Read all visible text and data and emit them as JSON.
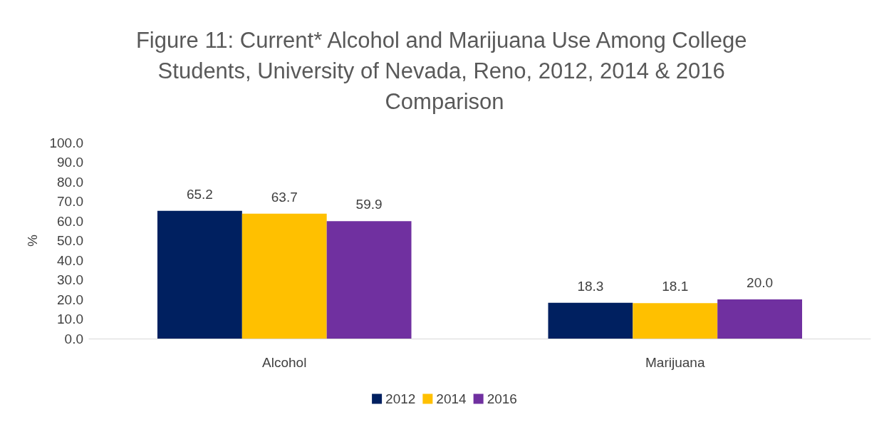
{
  "chart_data": {
    "type": "bar",
    "title": "Figure 11: Current* Alcohol and Marijuana Use Among College Students, University of Nevada, Reno, 2012, 2014 & 2016 Comparison",
    "ylabel": "%",
    "categories": [
      "Alcohol",
      "Marijuana"
    ],
    "series": [
      {
        "name": "2012",
        "color": "#002060",
        "values": [
          65.2,
          18.3
        ],
        "value_labels": [
          "65.2",
          "18.3"
        ]
      },
      {
        "name": "2014",
        "color": "#ffc000",
        "values": [
          63.7,
          18.1
        ],
        "value_labels": [
          "63.7",
          "18.1"
        ]
      },
      {
        "name": "2016",
        "color": "#7030a0",
        "values": [
          59.9,
          20.0
        ],
        "value_labels": [
          "59.9",
          "20.0"
        ]
      }
    ],
    "ylim": [
      0,
      100
    ],
    "yticks": [
      {
        "value": 0,
        "label": "0.0"
      },
      {
        "value": 10,
        "label": "10.0"
      },
      {
        "value": 20,
        "label": "20.0"
      },
      {
        "value": 30,
        "label": "30.0"
      },
      {
        "value": 40,
        "label": "40.0"
      },
      {
        "value": 50,
        "label": "50.0"
      },
      {
        "value": 60,
        "label": "60.0"
      },
      {
        "value": 70,
        "label": "70.0"
      },
      {
        "value": 80,
        "label": "80.0"
      },
      {
        "value": 90,
        "label": "90.0"
      },
      {
        "value": 100,
        "label": "100.0"
      }
    ],
    "grid": false,
    "legend": "bottom"
  }
}
